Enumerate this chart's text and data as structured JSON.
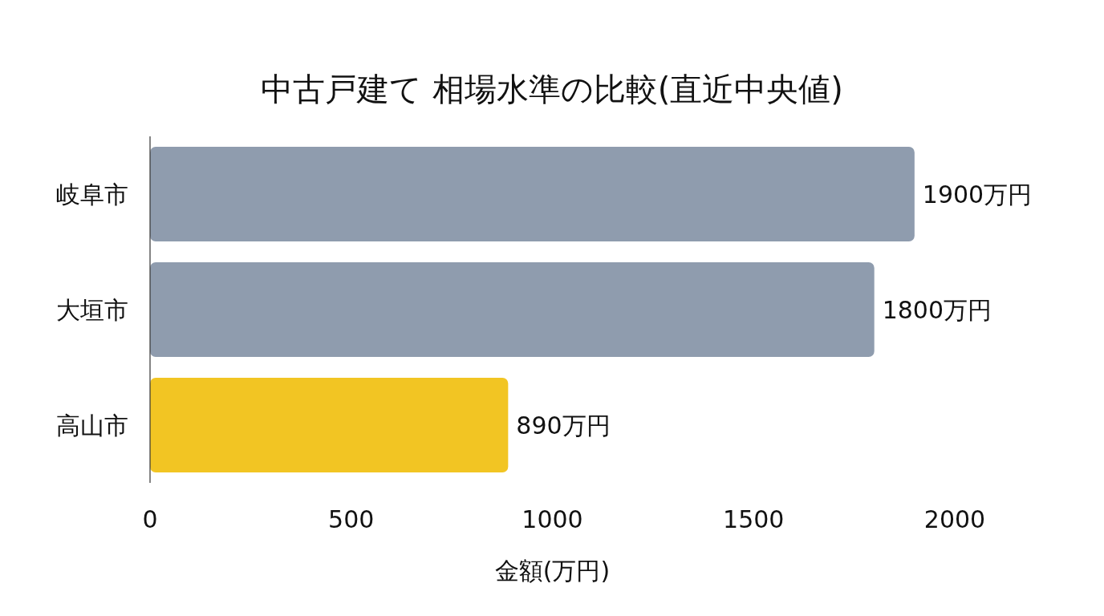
{
  "chart_data": {
    "type": "bar",
    "orientation": "horizontal",
    "title": "中古戸建て 相場水準の比較(直近中央値)",
    "xlabel": "金額(万円)",
    "categories": [
      "岐阜市",
      "大垣市",
      "高山市"
    ],
    "values": [
      1900,
      1800,
      890
    ],
    "colors": [
      "#8f9cae",
      "#8f9cae",
      "#f2c523"
    ],
    "value_labels": [
      "1900万円",
      "1800万円",
      "890万円"
    ],
    "xlim": [
      0,
      2000
    ],
    "xticks": [
      0,
      500,
      1000,
      1500,
      2000
    ]
  }
}
